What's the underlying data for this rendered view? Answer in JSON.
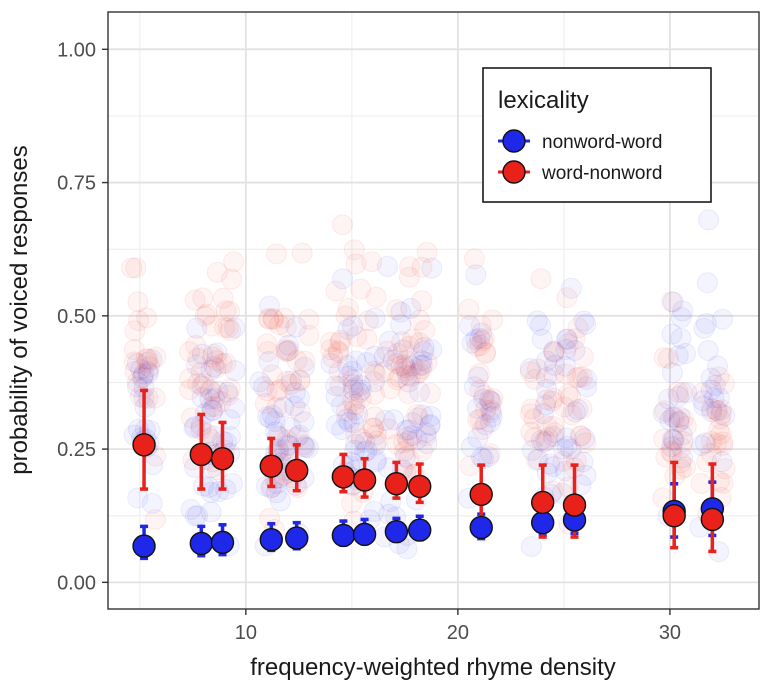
{
  "chart_data": {
    "type": "scatter",
    "xlabel": "frequency-weighted rhyme density",
    "ylabel": "probability of voiced responses",
    "xlim": [
      3.5,
      34.2
    ],
    "ylim": [
      -0.05,
      1.07
    ],
    "x_ticks": [
      10,
      20,
      30
    ],
    "x_tick_labels": [
      "10",
      "20",
      "30"
    ],
    "y_ticks": [
      0,
      0.25,
      0.5,
      0.75,
      1.0
    ],
    "y_tick_labels": [
      "0.00",
      "0.25",
      "0.50",
      "0.75",
      "1.00"
    ],
    "grid": true,
    "legend": {
      "title": "lexicality",
      "position": "top-right",
      "entries": [
        "nonword-word",
        "word-nonword"
      ]
    },
    "series": [
      {
        "name": "nonword-word",
        "color": "#1f28e8",
        "x": [
          5.2,
          7.9,
          8.9,
          11.2,
          12.4,
          14.6,
          15.6,
          17.1,
          18.2,
          21.1,
          24.0,
          25.5,
          30.2,
          32.0
        ],
        "y": [
          0.068,
          0.073,
          0.075,
          0.08,
          0.083,
          0.088,
          0.09,
          0.095,
          0.098,
          0.103,
          0.112,
          0.117,
          0.133,
          0.138
        ],
        "err_low": [
          0.045,
          0.05,
          0.052,
          0.06,
          0.063,
          0.07,
          0.072,
          0.077,
          0.08,
          0.082,
          0.088,
          0.092,
          0.085,
          0.088
        ],
        "err_high": [
          0.105,
          0.105,
          0.108,
          0.11,
          0.112,
          0.115,
          0.118,
          0.12,
          0.124,
          0.128,
          0.14,
          0.145,
          0.185,
          0.188
        ],
        "raw_center": [
          0.3,
          0.27,
          0.27,
          0.3,
          0.3,
          0.31,
          0.31,
          0.34,
          0.34,
          0.34,
          0.34,
          0.35,
          0.36,
          0.36
        ],
        "raw_spread": [
          0.09,
          0.09,
          0.09,
          0.1,
          0.1,
          0.11,
          0.11,
          0.12,
          0.12,
          0.11,
          0.12,
          0.12,
          0.12,
          0.12
        ]
      },
      {
        "name": "word-nonword",
        "color": "#e8211a",
        "x": [
          5.2,
          7.9,
          8.9,
          11.2,
          12.4,
          14.6,
          15.6,
          17.1,
          18.2,
          21.1,
          24.0,
          25.5,
          30.2,
          32.0
        ],
        "y": [
          0.258,
          0.24,
          0.232,
          0.218,
          0.21,
          0.198,
          0.192,
          0.185,
          0.18,
          0.165,
          0.15,
          0.145,
          0.125,
          0.118
        ],
        "err_low": [
          0.175,
          0.175,
          0.175,
          0.18,
          0.172,
          0.17,
          0.16,
          0.158,
          0.15,
          0.11,
          0.085,
          0.085,
          0.065,
          0.058
        ],
        "err_high": [
          0.36,
          0.315,
          0.3,
          0.27,
          0.258,
          0.24,
          0.232,
          0.225,
          0.222,
          0.22,
          0.22,
          0.22,
          0.225,
          0.222
        ],
        "raw_center": [
          0.4,
          0.4,
          0.4,
          0.38,
          0.38,
          0.38,
          0.37,
          0.36,
          0.36,
          0.36,
          0.32,
          0.32,
          0.3,
          0.3
        ],
        "raw_spread": [
          0.11,
          0.11,
          0.11,
          0.13,
          0.12,
          0.13,
          0.12,
          0.12,
          0.11,
          0.1,
          0.1,
          0.1,
          0.09,
          0.09
        ]
      }
    ]
  }
}
